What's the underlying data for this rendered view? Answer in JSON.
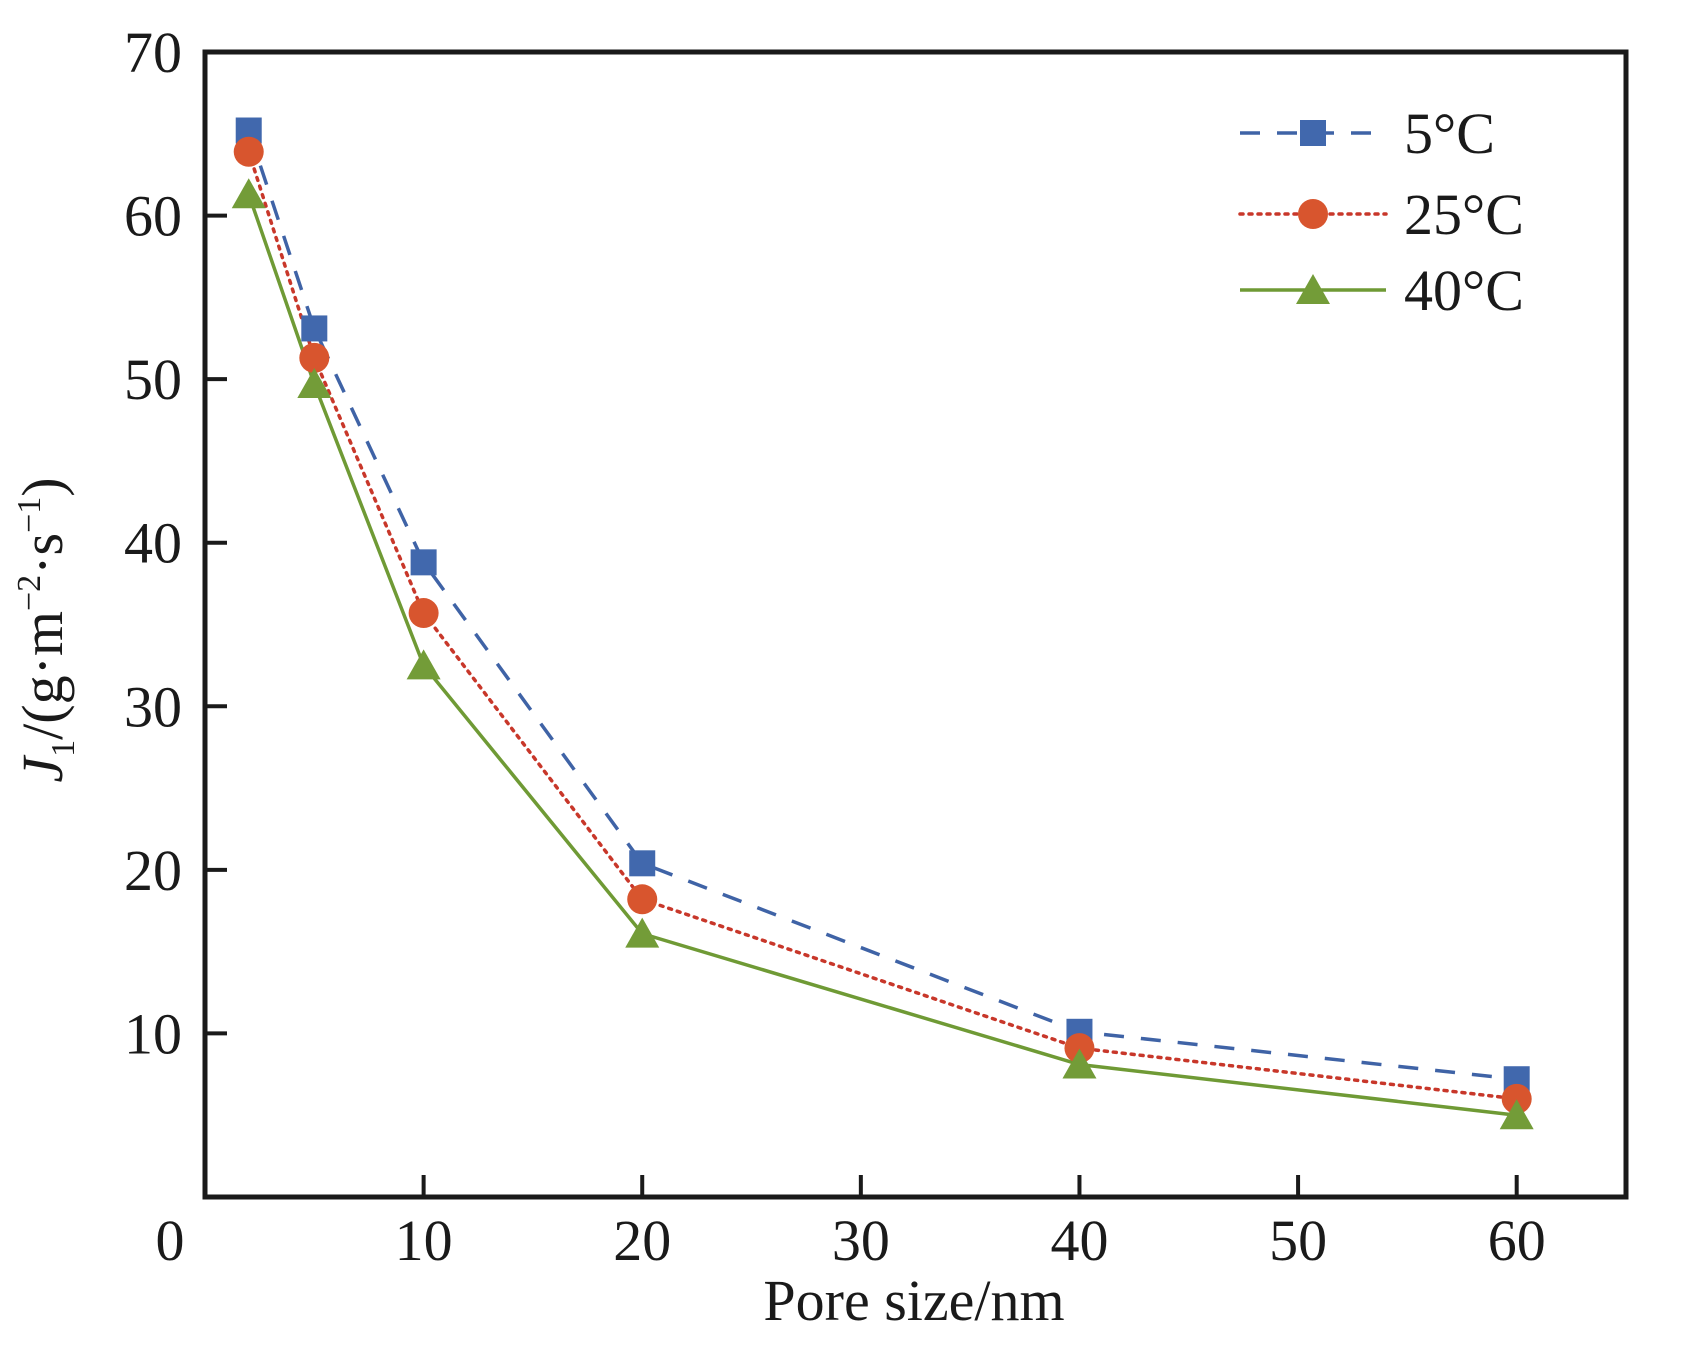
{
  "chart_data": {
    "type": "line",
    "title": "",
    "xlabel": "Pore size/nm",
    "ylabel": {
      "main": "J",
      "subscript": "1",
      "unit_prefix": "/(g·m",
      "exp1": "−2",
      "unit_mid": "·s",
      "exp2": "−1",
      "unit_suffix": ")"
    },
    "ylabel_text": "J1/(g·m−2·s−1)",
    "xlim": [
      0,
      65
    ],
    "ylim": [
      0,
      70
    ],
    "xticks": [
      0,
      10,
      20,
      30,
      40,
      50,
      60
    ],
    "xtick_labels": [
      "0",
      "10",
      "20",
      "30",
      "40",
      "50",
      "60"
    ],
    "yticks": [
      10,
      20,
      30,
      40,
      50,
      60,
      70
    ],
    "ytick_labels": [
      "10",
      "20",
      "30",
      "40",
      "50",
      "60",
      "70"
    ],
    "grid": false,
    "legend_position": "top-right",
    "x": [
      2,
      5,
      10,
      20,
      40,
      60
    ],
    "series": [
      {
        "name": "5°C",
        "marker": "square",
        "line_style": "dashed",
        "color": "#3f63a6",
        "marker_color": "#4168ad",
        "values": [
          65.2,
          53.1,
          38.8,
          20.4,
          10.1,
          7.2
        ]
      },
      {
        "name": "25°C",
        "marker": "circle",
        "line_style": "dotted",
        "color": "#c8372a",
        "marker_color": "#d8552e",
        "values": [
          63.9,
          51.3,
          35.7,
          18.2,
          9.1,
          6.0
        ]
      },
      {
        "name": "40°C",
        "marker": "triangle",
        "line_style": "solid",
        "color": "#6f9a35",
        "marker_color": "#739c38",
        "values": [
          61.3,
          49.7,
          32.5,
          16.1,
          8.1,
          5.0
        ]
      }
    ]
  }
}
